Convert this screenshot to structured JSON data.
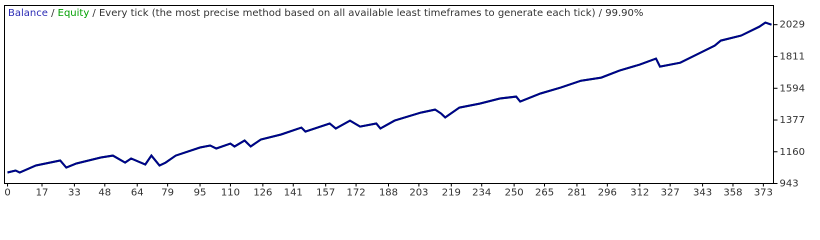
{
  "chart_data": {
    "type": "line",
    "title_parts": [
      "Balance",
      "Equity",
      "Every tick (the most precise method based on all available least timeframes to generate each tick)",
      "99.90%"
    ],
    "x": [
      0,
      4,
      6,
      14,
      26,
      29,
      34,
      46,
      52,
      58,
      61,
      68,
      71,
      75,
      78,
      83,
      95,
      100,
      103,
      110,
      112,
      117,
      120,
      125,
      135,
      145,
      147,
      159,
      162,
      169,
      174,
      182,
      184,
      191,
      204,
      211,
      214,
      216,
      223,
      233,
      243,
      251,
      253,
      263,
      273,
      283,
      293,
      302,
      312,
      320,
      322,
      332,
      342,
      349,
      352,
      362,
      371,
      374,
      377
    ],
    "series": [
      {
        "name": "Equity",
        "color": "#00a000",
        "values": [
          1018,
          1032,
          1018,
          1066,
          1100,
          1052,
          1080,
          1121,
          1134,
          1086,
          1114,
          1073,
          1134,
          1066,
          1086,
          1134,
          1189,
          1203,
          1182,
          1216,
          1196,
          1237,
          1196,
          1244,
          1278,
          1325,
          1298,
          1353,
          1319,
          1373,
          1332,
          1353,
          1319,
          1373,
          1428,
          1448,
          1421,
          1394,
          1462,
          1489,
          1524,
          1537,
          1503,
          1558,
          1599,
          1646,
          1667,
          1715,
          1756,
          1797,
          1742,
          1769,
          1838,
          1886,
          1920,
          1954,
          2015,
          2043,
          2029
        ]
      },
      {
        "name": "Balance",
        "color": "#00008b",
        "values": [
          1018,
          1032,
          1018,
          1066,
          1100,
          1052,
          1080,
          1121,
          1134,
          1086,
          1114,
          1073,
          1134,
          1066,
          1086,
          1134,
          1189,
          1203,
          1182,
          1216,
          1196,
          1237,
          1196,
          1244,
          1278,
          1325,
          1298,
          1353,
          1319,
          1373,
          1332,
          1353,
          1319,
          1373,
          1428,
          1448,
          1421,
          1394,
          1462,
          1489,
          1524,
          1537,
          1503,
          1558,
          1599,
          1646,
          1667,
          1715,
          1756,
          1797,
          1742,
          1769,
          1838,
          1886,
          1920,
          1954,
          2015,
          2043,
          2029
        ]
      }
    ],
    "xlim": [
      -1.5,
      378
    ],
    "xticks": [
      0,
      17,
      33,
      48,
      64,
      79,
      95,
      110,
      126,
      141,
      157,
      172,
      188,
      203,
      219,
      234,
      250,
      265,
      281,
      296,
      312,
      327,
      343,
      358,
      373
    ],
    "ylim": [
      943,
      2160
    ],
    "yticks": [
      943,
      1160,
      1377,
      1594,
      1811,
      2029
    ]
  }
}
